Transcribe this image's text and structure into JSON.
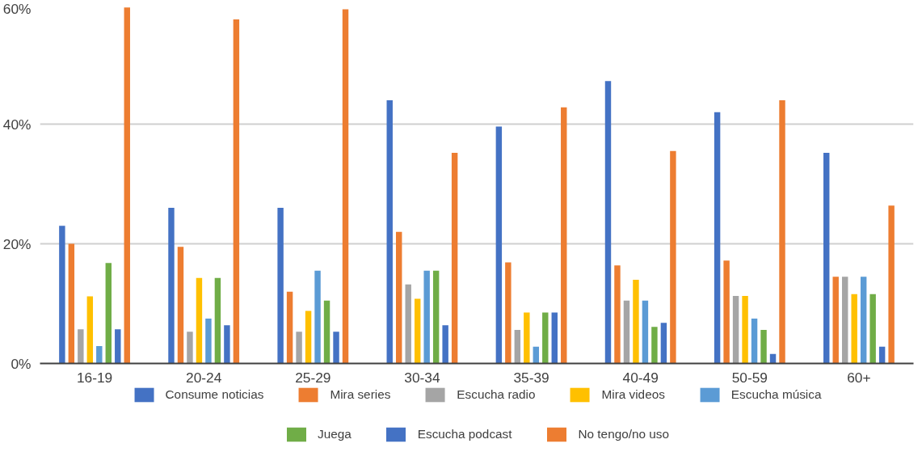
{
  "chart_data": {
    "type": "bar",
    "categories": [
      "16-19",
      "20-24",
      "25-29",
      "30-34",
      "35-39",
      "40-49",
      "50-59",
      "60+"
    ],
    "series": [
      {
        "name": "Consume noticias",
        "color": "#4472c4",
        "values": [
          23,
          26,
          26,
          44,
          39.6,
          47.2,
          42,
          35.2
        ]
      },
      {
        "name": "Mira series",
        "color": "#ed7d31",
        "values": [
          20,
          19.5,
          12,
          22,
          16.9,
          16.4,
          17.2,
          14.5
        ]
      },
      {
        "name": "Escucha radio",
        "color": "#a5a5a5",
        "values": [
          5.7,
          5.3,
          5.3,
          13.2,
          5.6,
          10.5,
          11.3,
          14.5
        ]
      },
      {
        "name": "Mira videos",
        "color": "#ffc000",
        "values": [
          11.2,
          14.3,
          8.8,
          10.8,
          8.5,
          14,
          11.3,
          11.6
        ]
      },
      {
        "name": "Escucha música",
        "color": "#5b9bd5",
        "values": [
          2.9,
          7.5,
          15.5,
          15.5,
          2.8,
          10.5,
          7.5,
          14.5
        ]
      },
      {
        "name": "Juega",
        "color": "#70ad47",
        "values": [
          16.8,
          14.3,
          10.5,
          15.5,
          8.5,
          6.1,
          5.6,
          11.6
        ]
      },
      {
        "name": "Escucha podcast",
        "color": "#4472c4",
        "values": [
          5.7,
          6.4,
          5.3,
          6.4,
          8.5,
          6.8,
          1.6,
          2.8
        ]
      },
      {
        "name": "No tengo/no uso",
        "color": "#ed7d31",
        "values": [
          59.5,
          57.5,
          59.2,
          35.2,
          42.8,
          35.5,
          44,
          26.4
        ]
      }
    ],
    "ylim": [
      0,
      60
    ],
    "yticks": [
      {
        "value": 0,
        "label": "0%"
      },
      {
        "value": 20,
        "label": "20%"
      },
      {
        "value": 40,
        "label": "40%"
      },
      {
        "value": 60,
        "label": "60%"
      }
    ],
    "grid": "y",
    "legend": "bottom"
  }
}
